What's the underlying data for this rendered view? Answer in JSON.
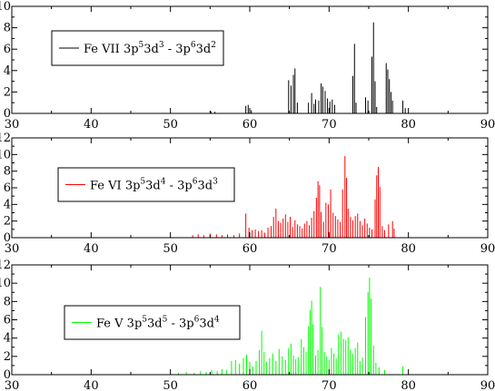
{
  "chart_data": [
    {
      "type": "bar",
      "legend": {
        "ion": "Fe VII",
        "parts": [
          [
            "3p",
            "5"
          ],
          [
            "3d",
            "3"
          ],
          [
            " - ",
            ""
          ],
          [
            "3p",
            "6"
          ],
          [
            "3d",
            "2"
          ]
        ]
      },
      "color": "#000000",
      "xlim": [
        30,
        90
      ],
      "ylim": [
        0,
        10
      ],
      "xticks": [
        "30",
        "40",
        "50",
        "60",
        "70",
        "80",
        "90"
      ],
      "yticks": [
        "0",
        "2",
        "4",
        "6",
        "8",
        "10"
      ],
      "lines": [
        [
          55.1,
          0.2
        ],
        [
          55.6,
          0.15
        ],
        [
          59.5,
          0.7
        ],
        [
          59.8,
          0.8
        ],
        [
          60.2,
          0.3
        ],
        [
          64.9,
          3.1
        ],
        [
          65.2,
          2.6
        ],
        [
          65.5,
          3.6
        ],
        [
          65.7,
          4.2
        ],
        [
          66.0,
          1.0
        ],
        [
          67.4,
          1.0
        ],
        [
          67.8,
          1.9
        ],
        [
          68.1,
          0.9
        ],
        [
          68.3,
          1.3
        ],
        [
          68.7,
          1.2
        ],
        [
          69.0,
          2.8
        ],
        [
          69.2,
          2.5
        ],
        [
          69.5,
          2.1
        ],
        [
          69.8,
          1.4
        ],
        [
          70.1,
          1.1
        ],
        [
          70.4,
          1.3
        ],
        [
          70.7,
          0.8
        ],
        [
          73.0,
          3.5
        ],
        [
          73.2,
          6.5
        ],
        [
          73.4,
          1.0
        ],
        [
          74.6,
          1.5
        ],
        [
          74.9,
          1.2
        ],
        [
          75.4,
          5.3
        ],
        [
          75.6,
          8.5
        ],
        [
          75.8,
          3.0
        ],
        [
          76.0,
          0.6
        ],
        [
          77.2,
          4.7
        ],
        [
          77.4,
          4.1
        ],
        [
          77.6,
          3.2
        ],
        [
          77.8,
          2.0
        ],
        [
          78.0,
          1.2
        ],
        [
          79.3,
          1.2
        ],
        [
          79.6,
          0.5
        ]
      ]
    },
    {
      "type": "bar",
      "legend": {
        "ion": "Fe VI",
        "parts": [
          [
            "3p",
            "5"
          ],
          [
            "3d",
            "4"
          ],
          [
            " - ",
            ""
          ],
          [
            "3p",
            "6"
          ],
          [
            "3d",
            "3"
          ]
        ]
      },
      "color": "#ff0000",
      "xlim": [
        30,
        90
      ],
      "ylim": [
        0,
        12
      ],
      "xticks": [
        "30",
        "40",
        "50",
        "60",
        "70",
        "80",
        "90"
      ],
      "yticks": [
        "0",
        "2",
        "4",
        "6",
        "8",
        "10",
        "12"
      ],
      "lines": [
        [
          52.8,
          0.3
        ],
        [
          53.5,
          0.4
        ],
        [
          54.2,
          0.3
        ],
        [
          55.0,
          0.5
        ],
        [
          55.8,
          0.4
        ],
        [
          56.5,
          0.3
        ],
        [
          57.2,
          0.4
        ],
        [
          58.0,
          0.3
        ],
        [
          58.7,
          0.5
        ],
        [
          59.5,
          2.9
        ],
        [
          59.9,
          1.2
        ],
        [
          60.3,
          0.9
        ],
        [
          60.7,
          1.0
        ],
        [
          61.1,
          0.8
        ],
        [
          61.5,
          0.9
        ],
        [
          61.9,
          0.6
        ],
        [
          62.3,
          1.2
        ],
        [
          62.7,
          1.4
        ],
        [
          63.0,
          2.5
        ],
        [
          63.3,
          3.5
        ],
        [
          63.6,
          2.0
        ],
        [
          63.9,
          1.8
        ],
        [
          64.2,
          2.3
        ],
        [
          64.5,
          2.8
        ],
        [
          64.8,
          1.9
        ],
        [
          65.1,
          2.5
        ],
        [
          65.4,
          1.3
        ],
        [
          65.7,
          2.1
        ],
        [
          66.0,
          1.6
        ],
        [
          66.3,
          1.4
        ],
        [
          66.6,
          1.1
        ],
        [
          66.9,
          1.7
        ],
        [
          67.2,
          2.0
        ],
        [
          67.5,
          1.5
        ],
        [
          67.8,
          2.4
        ],
        [
          68.1,
          3.2
        ],
        [
          68.4,
          4.8
        ],
        [
          68.6,
          6.8
        ],
        [
          68.8,
          6.3
        ],
        [
          69.0,
          3.1
        ],
        [
          69.3,
          1.9
        ],
        [
          69.6,
          4.2
        ],
        [
          69.9,
          4.0
        ],
        [
          70.2,
          5.8
        ],
        [
          70.5,
          3.0
        ],
        [
          70.8,
          2.6
        ],
        [
          71.1,
          2.2
        ],
        [
          71.4,
          1.9
        ],
        [
          71.7,
          5.8
        ],
        [
          72.0,
          9.8
        ],
        [
          72.2,
          7.2
        ],
        [
          72.4,
          3.5
        ],
        [
          72.7,
          2.5
        ],
        [
          73.0,
          2.1
        ],
        [
          73.3,
          2.6
        ],
        [
          73.6,
          2.9
        ],
        [
          73.9,
          2.0
        ],
        [
          74.2,
          1.5
        ],
        [
          74.5,
          2.3
        ],
        [
          74.8,
          1.7
        ],
        [
          75.1,
          1.2
        ],
        [
          75.4,
          1.0
        ],
        [
          75.8,
          4.6
        ],
        [
          76.0,
          7.5
        ],
        [
          76.2,
          8.5
        ],
        [
          76.4,
          6.1
        ],
        [
          76.7,
          1.4
        ],
        [
          77.0,
          0.9
        ],
        [
          77.5,
          1.6
        ],
        [
          78.0,
          2.0
        ],
        [
          78.2,
          1.1
        ]
      ]
    },
    {
      "type": "bar",
      "legend": {
        "ion": "Fe V",
        "parts": [
          [
            "3p",
            "5"
          ],
          [
            "3d",
            "5"
          ],
          [
            " - ",
            ""
          ],
          [
            "3p",
            "6"
          ],
          [
            "3d",
            "4"
          ]
        ]
      },
      "color": "#00ff00",
      "xlim": [
        30,
        90
      ],
      "ylim": [
        0,
        12
      ],
      "xticks": [
        "30",
        "40",
        "50",
        "60",
        "70",
        "80",
        "90"
      ],
      "yticks": [
        "0",
        "2",
        "4",
        "6",
        "8",
        "10",
        "12"
      ],
      "lines": [
        [
          51.0,
          0.2
        ],
        [
          52.0,
          0.3
        ],
        [
          53.0,
          0.2
        ],
        [
          53.8,
          0.4
        ],
        [
          54.5,
          0.3
        ],
        [
          55.2,
          0.5
        ],
        [
          55.9,
          0.4
        ],
        [
          56.5,
          0.6
        ],
        [
          57.1,
          0.5
        ],
        [
          57.7,
          1.5
        ],
        [
          58.2,
          1.6
        ],
        [
          58.7,
          1.2
        ],
        [
          59.2,
          1.8
        ],
        [
          59.6,
          2.2
        ],
        [
          60.0,
          1.4
        ],
        [
          60.4,
          0.9
        ],
        [
          60.8,
          1.5
        ],
        [
          61.2,
          2.7
        ],
        [
          61.5,
          4.8
        ],
        [
          61.8,
          2.5
        ],
        [
          62.1,
          1.4
        ],
        [
          62.5,
          1.8
        ],
        [
          62.9,
          2.3
        ],
        [
          63.3,
          1.5
        ],
        [
          63.7,
          2.8
        ],
        [
          64.1,
          2.0
        ],
        [
          64.5,
          1.6
        ],
        [
          64.9,
          2.9
        ],
        [
          65.2,
          3.4
        ],
        [
          65.5,
          2.1
        ],
        [
          65.8,
          1.7
        ],
        [
          66.1,
          1.9
        ],
        [
          66.5,
          3.9
        ],
        [
          66.8,
          3.0
        ],
        [
          67.1,
          2.5
        ],
        [
          67.4,
          5.3
        ],
        [
          67.6,
          7.1
        ],
        [
          67.8,
          8.1
        ],
        [
          68.0,
          5.5
        ],
        [
          68.3,
          2.1
        ],
        [
          68.6,
          2.7
        ],
        [
          68.9,
          9.6
        ],
        [
          69.1,
          5.2
        ],
        [
          69.4,
          2.5
        ],
        [
          69.7,
          2.0
        ],
        [
          70.0,
          1.6
        ],
        [
          70.3,
          2.9
        ],
        [
          70.6,
          2.3
        ],
        [
          70.9,
          1.8
        ],
        [
          71.2,
          4.4
        ],
        [
          71.5,
          4.7
        ],
        [
          71.8,
          3.9
        ],
        [
          72.1,
          3.8
        ],
        [
          72.4,
          4.1
        ],
        [
          72.7,
          2.7
        ],
        [
          73.0,
          2.3
        ],
        [
          73.3,
          2.9
        ],
        [
          73.6,
          3.5
        ],
        [
          73.9,
          1.5
        ],
        [
          74.2,
          1.9
        ],
        [
          74.6,
          6.3
        ],
        [
          74.9,
          9.0
        ],
        [
          75.1,
          10.6
        ],
        [
          75.3,
          8.3
        ],
        [
          75.6,
          3.2
        ],
        [
          75.9,
          1.3
        ],
        [
          76.3,
          0.8
        ],
        [
          77.0,
          0.5
        ],
        [
          79.3,
          0.9
        ]
      ]
    }
  ]
}
